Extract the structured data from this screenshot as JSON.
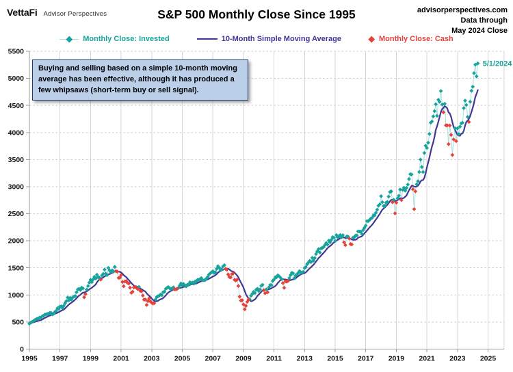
{
  "header": {
    "brand": "VettaFi",
    "brand_sub": "Advisor Perspectives",
    "title": "S&P 500 Monthly Close Since 1995",
    "source_line1": "advisorperspectives.com",
    "source_line2": "Data through",
    "source_line3": "May 2024 Close"
  },
  "annotation": {
    "text": "Buying and selling based on a simple 10-month moving average has been effective, although it has produced a few whipsaws (short-term buy or sell signal)."
  },
  "legend": {
    "invested": {
      "label": "Monthly Close: Invested",
      "color": "#1AA39D",
      "marker": "diamond-on-line"
    },
    "sma": {
      "label": "10-Month Simple Moving Average",
      "color": "#3F3795",
      "marker": "line"
    },
    "cash": {
      "label": "Monthly Close: Cash",
      "color": "#E6423C",
      "marker": "diamond"
    }
  },
  "colors": {
    "invested_teal": "#1AA39D",
    "cash_red": "#E6423C",
    "sma_navy": "#413895",
    "connector_light_teal": "#A9DEDC",
    "grid_vertical": "#D6D6D6",
    "grid_horizontal_dashed": "#CBCBCB",
    "axis": "#9B9B9B",
    "callout_fill": "#BCCFE9",
    "callout_border": "#1F3A6E"
  },
  "chart_data": {
    "type": "scatter",
    "title": "S&P 500 Monthly Close Since 1995",
    "xlabel": "",
    "ylabel": "",
    "xlim": [
      1995,
      2025
    ],
    "ylim": [
      0,
      5500
    ],
    "x_ticks": [
      1995,
      1997,
      1999,
      2001,
      2003,
      2005,
      2007,
      2009,
      2011,
      2013,
      2015,
      2017,
      2019,
      2021,
      2023,
      2025
    ],
    "y_ticks": [
      0,
      500,
      1000,
      1500,
      2000,
      2500,
      3000,
      3500,
      4000,
      4500,
      5000,
      5500
    ],
    "grid": {
      "horizontal": "dashed",
      "vertical": "solid"
    },
    "legend_position": "top-center",
    "x_start": {
      "year": 1995,
      "month": 1
    },
    "x_end_label": "5/1/2024",
    "last_close": 5277,
    "series_names": [
      "Monthly Close: Invested",
      "10-Month Simple Moving Average",
      "Monthly Close: Cash"
    ],
    "classification_rule": "month plotted as Cash (red) when close is below the 10-month simple moving average, otherwise Invested (teal); SMA line overlaid",
    "monthly_close": [
      470,
      487,
      501,
      515,
      533,
      545,
      562,
      562,
      584,
      582,
      605,
      616,
      636,
      640,
      646,
      654,
      669,
      671,
      640,
      652,
      687,
      705,
      757,
      741,
      786,
      791,
      757,
      801,
      848,
      885,
      954,
      899,
      947,
      915,
      955,
      970,
      980,
      1049,
      1102,
      1112,
      1091,
      1134,
      1121,
      957,
      1017,
      1099,
      1164,
      1229,
      1280,
      1238,
      1286,
      1335,
      1302,
      1373,
      1329,
      1320,
      1283,
      1363,
      1389,
      1469,
      1394,
      1366,
      1499,
      1452,
      1421,
      1455,
      1431,
      1518,
      1437,
      1429,
      1315,
      1320,
      1366,
      1240,
      1160,
      1249,
      1256,
      1224,
      1211,
      1134,
      1041,
      1060,
      1139,
      1148,
      1130,
      1107,
      1147,
      1077,
      1067,
      990,
      912,
      916,
      815,
      886,
      936,
      880,
      856,
      841,
      848,
      917,
      964,
      975,
      990,
      1008,
      996,
      1051,
      1058,
      1112,
      1131,
      1145,
      1126,
      1107,
      1121,
      1141,
      1102,
      1104,
      1115,
      1130,
      1174,
      1212,
      1181,
      1204,
      1181,
      1157,
      1192,
      1191,
      1234,
      1220,
      1229,
      1207,
      1249,
      1248,
      1280,
      1281,
      1295,
      1311,
      1270,
      1270,
      1277,
      1304,
      1336,
      1378,
      1401,
      1418,
      1438,
      1407,
      1421,
      1482,
      1531,
      1503,
      1455,
      1474,
      1527,
      1549,
      1481,
      1468,
      1379,
      1331,
      1323,
      1386,
      1400,
      1280,
      1267,
      1283,
      1166,
      969,
      896,
      903,
      826,
      735,
      798,
      873,
      919,
      919,
      987,
      1021,
      1057,
      1036,
      1096,
      1115,
      1074,
      1104,
      1169,
      1187,
      1089,
      1031,
      1102,
      1049,
      1141,
      1183,
      1181,
      1258,
      1286,
      1327,
      1326,
      1364,
      1345,
      1321,
      1292,
      1219,
      1131,
      1253,
      1247,
      1258,
      1312,
      1366,
      1408,
      1398,
      1310,
      1362,
      1379,
      1407,
      1441,
      1412,
      1416,
      1426,
      1498,
      1515,
      1569,
      1598,
      1631,
      1606,
      1686,
      1633,
      1682,
      1757,
      1806,
      1848,
      1783,
      1859,
      1872,
      1884,
      1924,
      1960,
      1931,
      2003,
      1972,
      2018,
      2068,
      2059,
      1995,
      2105,
      2068,
      2086,
      2107,
      2063,
      2104,
      1972,
      1920,
      2079,
      2080,
      2044,
      1940,
      1932,
      2060,
      2065,
      2097,
      2099,
      2174,
      2171,
      2168,
      2126,
      2199,
      2239,
      2279,
      2364,
      2363,
      2384,
      2412,
      2423,
      2470,
      2472,
      2519,
      2575,
      2648,
      2674,
      2824,
      2714,
      2641,
      2648,
      2705,
      2718,
      2816,
      2902,
      2914,
      2712,
      2760,
      2507,
      2704,
      2785,
      2834,
      2946,
      2752,
      2942,
      2980,
      2926,
      2977,
      3038,
      3141,
      3231,
      3226,
      2954,
      2585,
      2912,
      3044,
      3100,
      3271,
      3500,
      3363,
      3270,
      3622,
      3756,
      3714,
      3811,
      3973,
      4181,
      4204,
      4298,
      4395,
      4523,
      4308,
      4605,
      4567,
      4766,
      4516,
      4374,
      4530,
      4132,
      4132,
      3785,
      4130,
      3955,
      3586,
      3872,
      4080,
      3840,
      4077,
      3970,
      4109,
      4169,
      4180,
      4450,
      4589,
      4508,
      4288,
      4194,
      4568,
      4770,
      4846,
      5096,
      5254,
      5036,
      5277
    ]
  }
}
